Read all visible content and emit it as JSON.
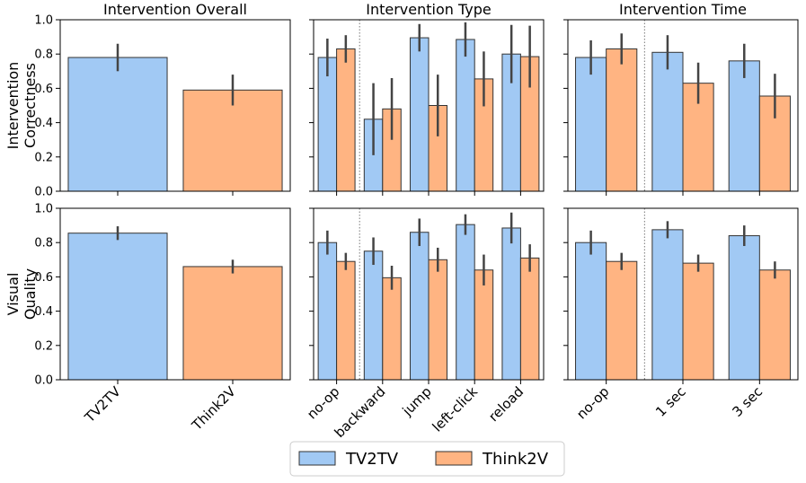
{
  "chart_data": {
    "type": "bar",
    "series": [
      {
        "name": "TV2TV",
        "color": "#a1c9f4"
      },
      {
        "name": "Think2V",
        "color": "#ffb482"
      }
    ],
    "rows": [
      {
        "ylabel": [
          "Intervention",
          "Correctness"
        ],
        "ylim": [
          0,
          1
        ],
        "yticks": [
          {
            "value": 0,
            "label": "0.0"
          },
          0.2,
          0.4,
          0.6,
          0.8,
          {
            "value": 1,
            "label": "1.0"
          }
        ]
      },
      {
        "ylabel": [
          "Visual",
          "Quality"
        ],
        "ylim": [
          0,
          1
        ],
        "yticks": [
          {
            "value": 0,
            "label": "0.0"
          },
          0.2,
          0.4,
          0.6,
          0.8,
          {
            "value": 1,
            "label": "1.0"
          }
        ]
      }
    ],
    "columns": [
      {
        "title": "Intervention Overall",
        "categories": [
          "TV2TV",
          "Think2V"
        ],
        "panels": [
          {
            "values": [
              0.78,
              0.59
            ],
            "errors": [
              0.08,
              0.09
            ]
          },
          {
            "values": [
              0.855,
              0.66
            ],
            "errors": [
              0.04,
              0.04
            ]
          }
        ]
      },
      {
        "title": "Intervention Type",
        "categories": [
          "no-op",
          "backward",
          "jump",
          "left-click",
          "reload"
        ],
        "panels": [
          {
            "series": [
              {
                "values": [
                  0.78,
                  0.42,
                  0.895,
                  0.885,
                  0.8
                ],
                "errors": [
                  0.11,
                  0.21,
                  0.08,
                  0.1,
                  0.17
                ]
              },
              {
                "values": [
                  0.83,
                  0.48,
                  0.5,
                  0.655,
                  0.785
                ],
                "errors": [
                  0.08,
                  0.18,
                  0.18,
                  0.16,
                  0.18
                ]
              }
            ]
          },
          {
            "series": [
              {
                "values": [
                  0.8,
                  0.75,
                  0.86,
                  0.905,
                  0.885
                ],
                "errors": [
                  0.07,
                  0.08,
                  0.08,
                  0.06,
                  0.09
                ]
              },
              {
                "values": [
                  0.69,
                  0.595,
                  0.7,
                  0.64,
                  0.71
                ],
                "errors": [
                  0.05,
                  0.07,
                  0.07,
                  0.09,
                  0.08
                ]
              }
            ]
          }
        ]
      },
      {
        "title": "Intervention Time",
        "categories": [
          "no-op",
          "1 sec",
          "3 sec"
        ],
        "panels": [
          {
            "series": [
              {
                "values": [
                  0.78,
                  0.81,
                  0.76
                ],
                "errors": [
                  0.1,
                  0.1,
                  0.1
                ]
              },
              {
                "values": [
                  0.83,
                  0.63,
                  0.555
                ],
                "errors": [
                  0.09,
                  0.12,
                  0.13
                ]
              }
            ]
          },
          {
            "series": [
              {
                "values": [
                  0.8,
                  0.875,
                  0.84
                ],
                "errors": [
                  0.07,
                  0.05,
                  0.06
                ]
              },
              {
                "values": [
                  0.69,
                  0.68,
                  0.64
                ],
                "errors": [
                  0.05,
                  0.05,
                  0.05
                ]
              }
            ]
          }
        ]
      }
    ]
  }
}
